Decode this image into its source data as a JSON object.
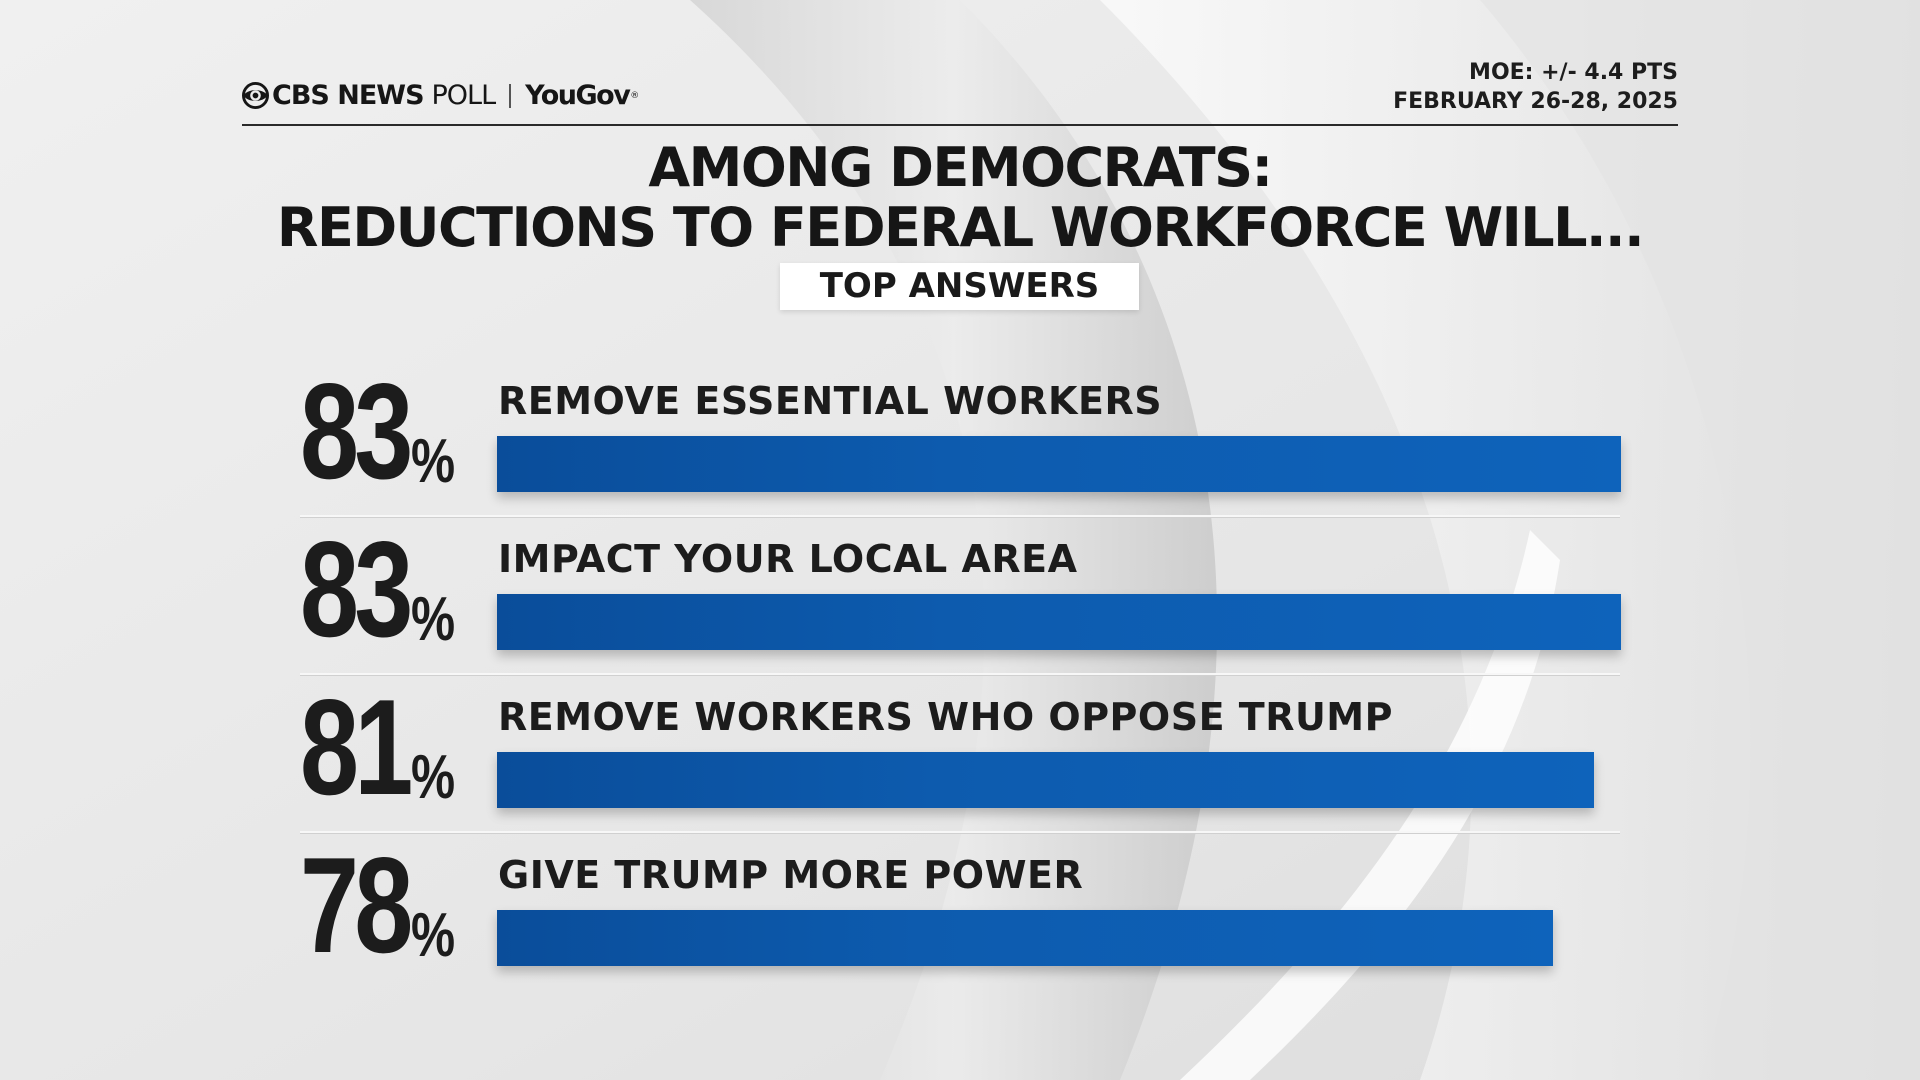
{
  "header": {
    "brand": "CBS NEWS",
    "poll": "POLL",
    "partner": "YouGov",
    "moe": "MOE: +/- 4.4 PTS",
    "dates": "FEBRUARY 26-28, 2025"
  },
  "badge": "TOP ANSWERS",
  "colors": {
    "bar": "#0d5bae",
    "text": "#1c1c1c"
  },
  "chart_data": {
    "type": "bar",
    "orientation": "horizontal",
    "title": "AMONG DEMOCRATS:",
    "subtitle": "REDUCTIONS TO FEDERAL WORKFORCE WILL...",
    "categories": [
      "REMOVE ESSENTIAL WORKERS",
      "IMPACT YOUR LOCAL AREA",
      "REMOVE WORKERS WHO OPPOSE TRUMP",
      "GIVE TRUMP MORE POWER"
    ],
    "values": [
      83,
      83,
      81,
      78
    ],
    "value_labels": [
      "83",
      "83",
      "81",
      "78"
    ],
    "unit": "%",
    "xlim": [
      0,
      100
    ],
    "grid": false,
    "legend": "none"
  }
}
